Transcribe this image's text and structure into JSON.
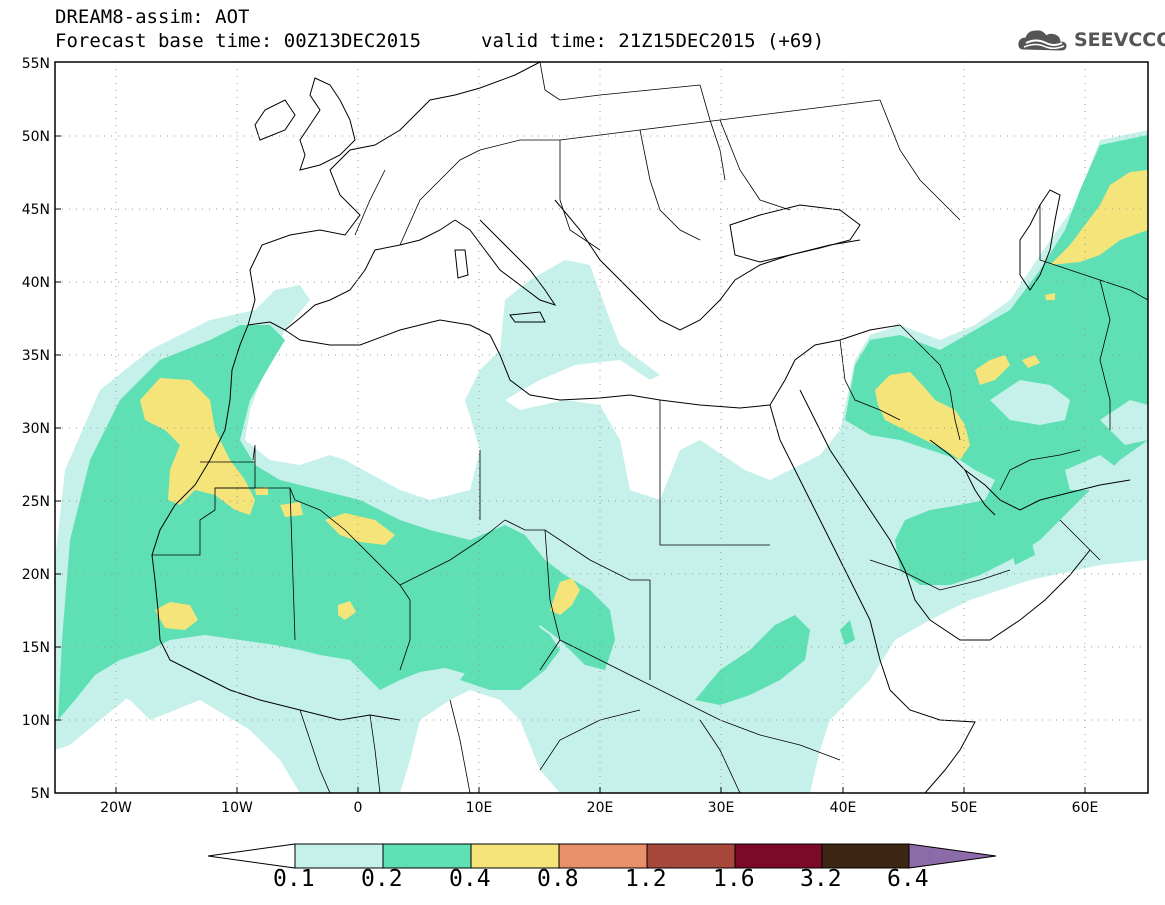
{
  "header": {
    "line1": "DREAM8-assim: AOT",
    "base_time": "Forecast base time: 00Z13DEC2015",
    "valid_time": "valid time: 21Z15DEC2015 (+69)"
  },
  "logo": {
    "text": "SEEVCCC",
    "icon": "cloud-icon"
  },
  "axes": {
    "lat_labels": [
      "55N",
      "50N",
      "45N",
      "40N",
      "35N",
      "30N",
      "25N",
      "20N",
      "15N",
      "10N",
      "5N"
    ],
    "lon_labels": [
      "20W",
      "10W",
      "0",
      "10E",
      "20E",
      "30E",
      "40E",
      "50E",
      "60E"
    ],
    "lat_range": [
      5,
      55
    ],
    "lon_range": [
      -25,
      65
    ],
    "grid": "dotted"
  },
  "colorbar": {
    "labels": [
      "0.1",
      "0.2",
      "0.4",
      "0.8",
      "1.2",
      "1.6",
      "3.2",
      "6.4"
    ],
    "colors": [
      "#ffffff",
      "#c6f1ea",
      "#5ee0b4",
      "#f5e47a",
      "#e8906a",
      "#a8483a",
      "#7a0a28",
      "#3e2614",
      "#8d6ba8"
    ]
  },
  "legend_colors": {
    "low": "#c6f1ea",
    "mid": "#5ee0b4",
    "high": "#f5e47a"
  }
}
